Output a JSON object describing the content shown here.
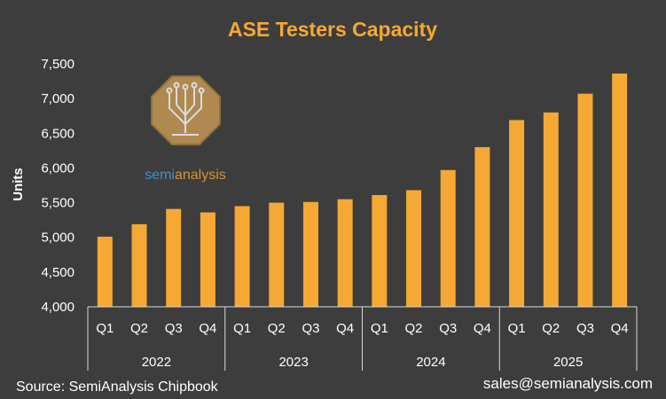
{
  "chart_data": {
    "type": "bar",
    "title": "ASE Testers Capacity",
    "ylabel": "Units",
    "xlabel": "",
    "ylim": [
      4000,
      7500
    ],
    "yticks": [
      4000,
      4500,
      5000,
      5500,
      6000,
      6500,
      7000,
      7500
    ],
    "ytick_labels": [
      "4,000",
      "4,500",
      "5,000",
      "5,500",
      "6,000",
      "6,500",
      "7,000",
      "7,500"
    ],
    "categories": [
      "Q1",
      "Q2",
      "Q3",
      "Q4",
      "Q1",
      "Q2",
      "Q3",
      "Q4",
      "Q1",
      "Q2",
      "Q3",
      "Q4",
      "Q1",
      "Q2",
      "Q3",
      "Q4"
    ],
    "groups": [
      {
        "label": "2022",
        "count": 4
      },
      {
        "label": "2023",
        "count": 4
      },
      {
        "label": "2024",
        "count": 4
      },
      {
        "label": "2025",
        "count": 4
      }
    ],
    "values": [
      5010,
      5190,
      5410,
      5360,
      5450,
      5500,
      5510,
      5550,
      5610,
      5680,
      5970,
      6300,
      6690,
      6800,
      7070,
      7360
    ],
    "bar_color": "#f5a833",
    "grid": false,
    "legend": "none"
  },
  "logo": {
    "part1": "semi",
    "part2": "analysis",
    "colors": {
      "badge": "#c89a55",
      "text_a": "#4aa3df",
      "text_b": "#f5a833"
    }
  },
  "footer": {
    "source": "Source: SemiAnalysis Chipbook",
    "contact": "sales@semianalysis.com"
  },
  "colors": {
    "background": "#3d3d3d",
    "text": "#ffffff",
    "title": "#f5a833",
    "axis": "#d9d9d9"
  }
}
